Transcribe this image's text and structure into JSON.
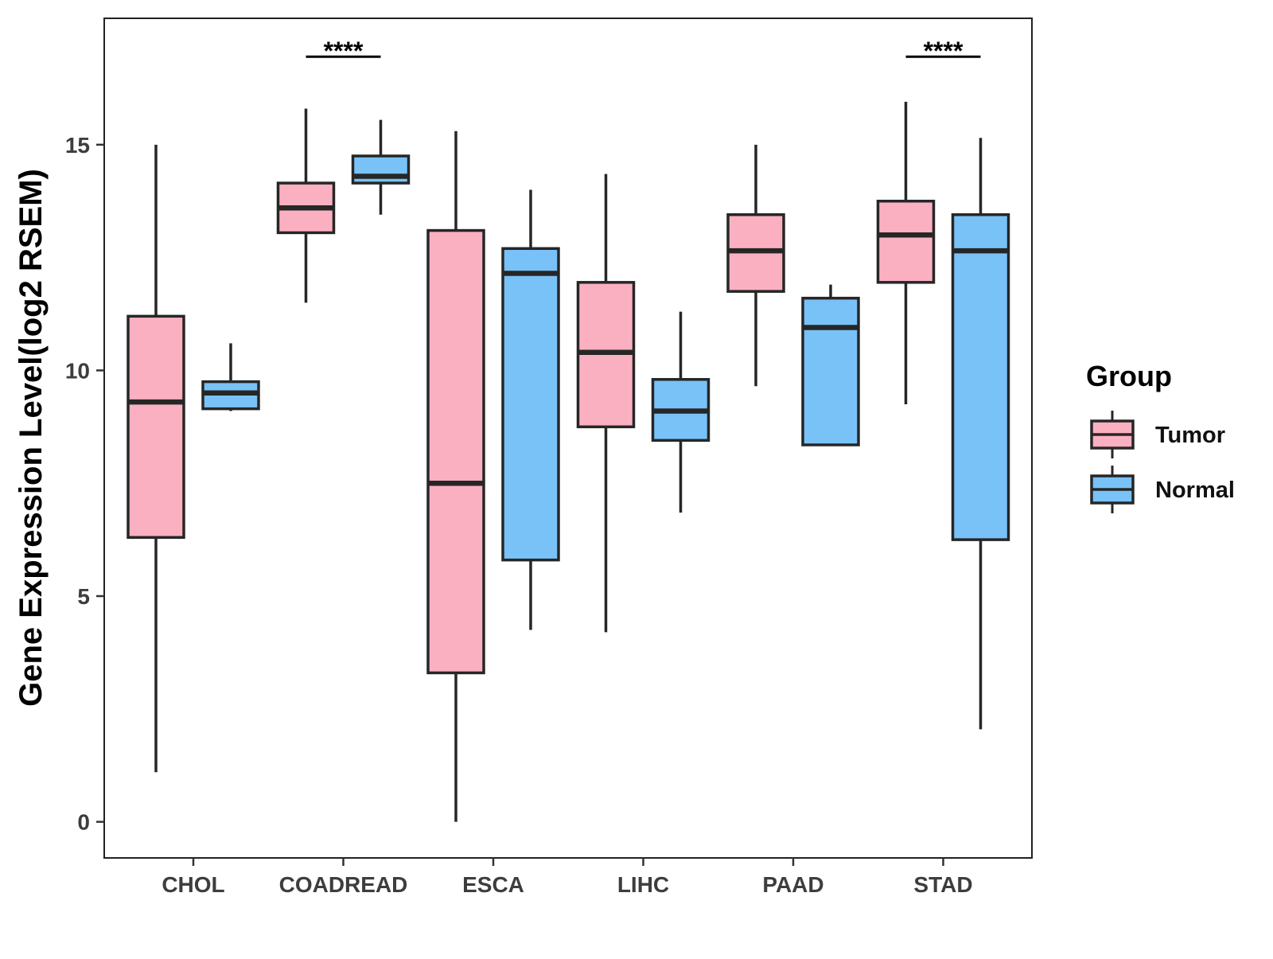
{
  "chart_data": {
    "type": "boxplot",
    "title": "",
    "xlabel": "",
    "ylabel": "Gene Expression Level(log2 RSEM)",
    "ylim": [
      -0.8,
      17.8
    ],
    "yticks": [
      0,
      5,
      10,
      15
    ],
    "grid": false,
    "categories": [
      "CHOL",
      "COADREAD",
      "ESCA",
      "LIHC",
      "PAAD",
      "STAD"
    ],
    "legend": {
      "title": "Group",
      "position": "right",
      "entries": [
        "Tumor",
        "Normal"
      ]
    },
    "colors": {
      "Tumor": "#fbb0c2",
      "Normal": "#79c2f8",
      "stroke": "#262626"
    },
    "series": [
      {
        "name": "Tumor",
        "boxes": [
          {
            "category": "CHOL",
            "whisker_low": 1.1,
            "q1": 6.3,
            "median": 9.3,
            "q3": 11.2,
            "whisker_high": 15.0
          },
          {
            "category": "COADREAD",
            "whisker_low": 11.5,
            "q1": 13.05,
            "median": 13.6,
            "q3": 14.15,
            "whisker_high": 15.8
          },
          {
            "category": "ESCA",
            "whisker_low": 0.0,
            "q1": 3.3,
            "median": 7.5,
            "q3": 13.1,
            "whisker_high": 15.3
          },
          {
            "category": "LIHC",
            "whisker_low": 4.2,
            "q1": 8.75,
            "median": 10.4,
            "q3": 11.95,
            "whisker_high": 14.35
          },
          {
            "category": "PAAD",
            "whisker_low": 9.65,
            "q1": 11.75,
            "median": 12.65,
            "q3": 13.45,
            "whisker_high": 15.0
          },
          {
            "category": "STAD",
            "whisker_low": 9.25,
            "q1": 11.95,
            "median": 13.0,
            "q3": 13.75,
            "whisker_high": 15.95
          }
        ]
      },
      {
        "name": "Normal",
        "boxes": [
          {
            "category": "CHOL",
            "whisker_low": 9.1,
            "q1": 9.15,
            "median": 9.5,
            "q3": 9.75,
            "whisker_high": 10.6
          },
          {
            "category": "COADREAD",
            "whisker_low": 13.45,
            "q1": 14.15,
            "median": 14.3,
            "q3": 14.75,
            "whisker_high": 15.55
          },
          {
            "category": "ESCA",
            "whisker_low": 4.25,
            "q1": 5.8,
            "median": 12.15,
            "q3": 12.7,
            "whisker_high": 14.0
          },
          {
            "category": "LIHC",
            "whisker_low": 6.85,
            "q1": 8.45,
            "median": 9.1,
            "q3": 9.8,
            "whisker_high": 11.3
          },
          {
            "category": "PAAD",
            "whisker_low": 8.35,
            "q1": 8.35,
            "median": 10.95,
            "q3": 11.6,
            "whisker_high": 11.9
          },
          {
            "category": "STAD",
            "whisker_low": 2.05,
            "q1": 6.25,
            "median": 12.65,
            "q3": 13.45,
            "whisker_high": 15.15
          }
        ]
      }
    ],
    "significance": [
      {
        "category": "COADREAD",
        "label": "****",
        "y": 16.95
      },
      {
        "category": "STAD",
        "label": "****",
        "y": 16.95
      }
    ]
  }
}
